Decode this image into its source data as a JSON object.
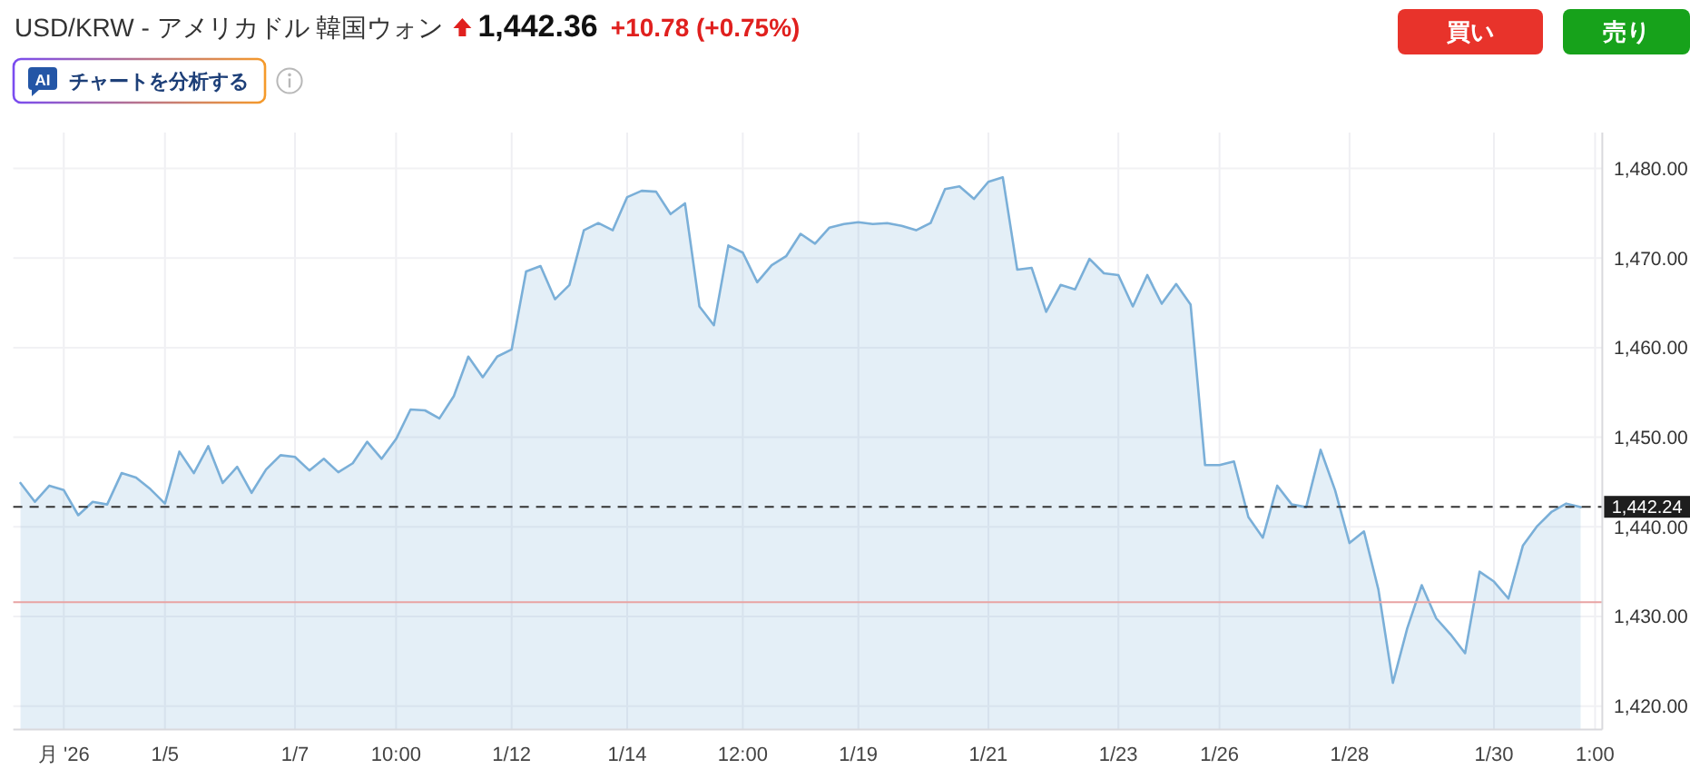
{
  "chart_data": {
    "type": "area",
    "title": "USD/KRW - アメリカドル 韓国ウォン",
    "subtitle": "1,442.36",
    "annotations": [
      "+10.78 (+0.75%)",
      "AI",
      "チャートを分析する",
      "買い",
      "売り"
    ],
    "categories": [
      null,
      null,
      null,
      "月 '26",
      null,
      null,
      null,
      null,
      null,
      null,
      "1/5",
      null,
      null,
      null,
      null,
      null,
      null,
      null,
      null,
      "1/7",
      null,
      null,
      null,
      null,
      null,
      null,
      "10:00",
      null,
      null,
      null,
      null,
      null,
      null,
      null,
      "1/12",
      null,
      null,
      null,
      null,
      null,
      null,
      null,
      "1/14",
      null,
      null,
      null,
      null,
      null,
      null,
      null,
      "12:00",
      null,
      null,
      null,
      null,
      null,
      null,
      null,
      "1/19",
      null,
      null,
      null,
      null,
      null,
      null,
      null,
      null,
      "1/21",
      null,
      null,
      null,
      null,
      null,
      null,
      null,
      null,
      "1/23",
      null,
      null,
      null,
      null,
      null,
      null,
      "1/26",
      null,
      null,
      null,
      null,
      null,
      null,
      null,
      null,
      "1/28",
      null,
      null,
      null,
      null,
      null,
      null,
      null,
      null,
      null,
      "1/30",
      null,
      null,
      null,
      null,
      null,
      null,
      "1:00"
    ],
    "values": [
      1444.9,
      1442.8,
      1444.6,
      1444.1,
      1441.3,
      1442.8,
      1442.5,
      1446.0,
      1445.5,
      1444.2,
      1442.6,
      1448.4,
      1446.0,
      1449.0,
      1444.9,
      1446.7,
      1443.8,
      1446.4,
      1448.0,
      1447.8,
      1446.3,
      1447.6,
      1446.1,
      1447.1,
      1449.5,
      1447.6,
      1449.8,
      1453.1,
      1453.0,
      1452.1,
      1454.6,
      1459.0,
      1456.7,
      1459.0,
      1459.8,
      1468.5,
      1469.1,
      1465.4,
      1467.0,
      1473.1,
      1473.9,
      1473.1,
      1476.8,
      1477.5,
      1477.4,
      1474.9,
      1476.1,
      1464.6,
      1462.5,
      1471.4,
      1470.6,
      1467.3,
      1469.2,
      1470.2,
      1472.7,
      1471.6,
      1473.4,
      1473.8,
      1474.0,
      1473.8,
      1473.9,
      1473.6,
      1473.1,
      1473.9,
      1477.7,
      1478.0,
      1476.6,
      1478.5,
      1479.0,
      1468.7,
      1468.9,
      1464.0,
      1467.0,
      1466.5,
      1469.9,
      1468.3,
      1468.1,
      1464.6,
      1468.1,
      1464.9,
      1467.1,
      1464.8,
      1446.9,
      1446.9,
      1447.3,
      1441.1,
      1438.8,
      1444.6,
      1442.5,
      1442.2,
      1448.6,
      1444.1,
      1438.2,
      1439.5,
      1433.0,
      1422.6,
      1428.7,
      1433.5,
      1429.8,
      1428.0,
      1425.9,
      1435.0,
      1433.9,
      1432.0,
      1437.9,
      1440.1,
      1441.7,
      1442.6,
      1442.2,
      null
    ],
    "color": "#7aafd8",
    "ylim": [
      1417.4,
      1484.0
    ],
    "yticks": [
      {
        "value": 1420,
        "label": "1,420.00"
      },
      {
        "value": 1430,
        "label": "1,430.00"
      },
      {
        "value": 1440,
        "label": "1,440.00"
      },
      {
        "value": 1450,
        "label": "1,450.00"
      },
      {
        "value": 1460,
        "label": "1,460.00"
      },
      {
        "value": 1470,
        "label": "1,470.00"
      },
      {
        "value": 1480,
        "label": "1,480.00"
      }
    ],
    "grid": true,
    "ref_lines": [
      {
        "axis": "y",
        "value": 1442.24,
        "label": "1,442.24",
        "color": "#333333",
        "line_style": "dashed"
      },
      {
        "axis": "y",
        "value": 1431.6,
        "color": "#e8a3a3",
        "line_style": "solid"
      }
    ]
  }
}
